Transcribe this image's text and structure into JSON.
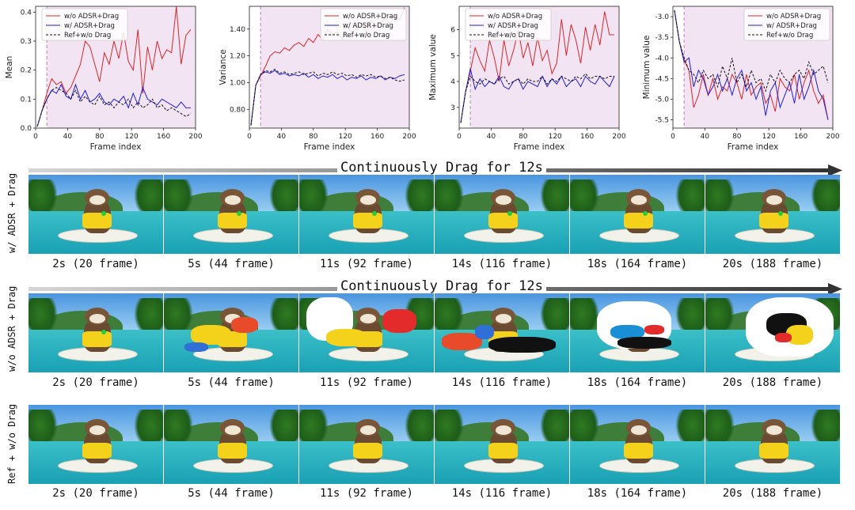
{
  "chart_data": [
    {
      "type": "line",
      "xlabel": "Frame index",
      "ylabel": "Mean",
      "xlim": [
        0,
        200
      ],
      "ylim": [
        0.0,
        0.42
      ],
      "xticks": [
        "0",
        "40",
        "80",
        "120",
        "160",
        "200"
      ],
      "yticks": [
        "0.0",
        "0.1",
        "0.2",
        "0.3",
        "0.4"
      ],
      "yticks_values": [
        0.0,
        0.1,
        0.2,
        0.3,
        0.4
      ],
      "marker_x": 14,
      "legend_position": "top-left",
      "legend": [
        "w/o ADSR+Drag",
        "w/ ADSR+Drag",
        "Ref+w/o Drag"
      ],
      "x": [
        2,
        8,
        14,
        20,
        26,
        32,
        38,
        44,
        50,
        56,
        62,
        68,
        74,
        80,
        86,
        92,
        98,
        104,
        110,
        116,
        122,
        128,
        134,
        140,
        146,
        152,
        158,
        164,
        170,
        176,
        182,
        188,
        194
      ],
      "series": [
        {
          "name": "w/o ADSR+Drag",
          "color": "#d62728",
          "style": "solid",
          "values": [
            0.005,
            0.06,
            0.12,
            0.17,
            0.15,
            0.16,
            0.12,
            0.14,
            0.18,
            0.22,
            0.3,
            0.28,
            0.22,
            0.16,
            0.26,
            0.22,
            0.3,
            0.24,
            0.33,
            0.23,
            0.2,
            0.34,
            0.12,
            0.28,
            0.2,
            0.3,
            0.24,
            0.27,
            0.26,
            0.42,
            0.22,
            0.32,
            0.34
          ]
        },
        {
          "name": "w/ ADSR+Drag",
          "color": "#1f1fd6",
          "style": "solid",
          "values": [
            0.005,
            0.06,
            0.1,
            0.13,
            0.12,
            0.15,
            0.11,
            0.1,
            0.15,
            0.1,
            0.13,
            0.09,
            0.1,
            0.12,
            0.09,
            0.08,
            0.1,
            0.09,
            0.11,
            0.07,
            0.12,
            0.08,
            0.14,
            0.1,
            0.09,
            0.08,
            0.1,
            0.09,
            0.08,
            0.07,
            0.09,
            0.07,
            0.07
          ]
        },
        {
          "name": "Ref+w/o Drag",
          "color": "#111111",
          "style": "dashed",
          "values": [
            0.005,
            0.06,
            0.1,
            0.13,
            0.14,
            0.13,
            0.12,
            0.1,
            0.13,
            0.09,
            0.11,
            0.09,
            0.08,
            0.11,
            0.08,
            0.09,
            0.07,
            0.09,
            0.08,
            0.1,
            0.07,
            0.09,
            0.07,
            0.08,
            0.1,
            0.07,
            0.08,
            0.06,
            0.07,
            0.06,
            0.05,
            0.04,
            0.05
          ]
        }
      ]
    },
    {
      "type": "line",
      "xlabel": "Frame index",
      "ylabel": "Variance",
      "xlim": [
        0,
        200
      ],
      "ylim": [
        0.66,
        1.57
      ],
      "xticks": [
        "0",
        "40",
        "80",
        "120",
        "160",
        "200"
      ],
      "yticks": [
        "0.80",
        "1.00",
        "1.20",
        "1.40"
      ],
      "yticks_values": [
        0.8,
        1.0,
        1.2,
        1.4
      ],
      "marker_x": 14,
      "legend_position": "top-right",
      "legend": [
        "w/o ADSR+Drag",
        "w/ ADSR+Drag",
        "Ref+w/o Drag"
      ],
      "x": [
        2,
        8,
        14,
        20,
        26,
        32,
        38,
        44,
        50,
        56,
        62,
        68,
        74,
        80,
        86,
        92,
        98,
        104,
        110,
        116,
        122,
        128,
        134,
        140,
        146,
        152,
        158,
        164,
        170,
        176,
        182,
        188,
        194
      ],
      "series": [
        {
          "name": "w/o ADSR+Drag",
          "color": "#d62728",
          "style": "solid",
          "values": [
            0.68,
            0.98,
            1.05,
            1.12,
            1.2,
            1.23,
            1.22,
            1.26,
            1.24,
            1.28,
            1.3,
            1.27,
            1.33,
            1.3,
            1.36,
            1.32,
            1.4,
            1.36,
            1.38,
            1.32,
            1.42,
            1.38,
            1.4,
            1.44,
            1.38,
            1.46,
            1.42,
            1.45,
            1.48,
            1.44,
            1.5,
            1.47,
            1.56
          ]
        },
        {
          "name": "w/ ADSR+Drag",
          "color": "#1f1fd6",
          "style": "solid",
          "values": [
            0.68,
            0.98,
            1.06,
            1.08,
            1.07,
            1.09,
            1.06,
            1.07,
            1.05,
            1.06,
            1.05,
            1.07,
            1.04,
            1.06,
            1.03,
            1.05,
            1.04,
            1.06,
            1.03,
            1.05,
            1.02,
            1.04,
            1.03,
            1.05,
            1.02,
            1.04,
            1.03,
            1.05,
            1.02,
            1.04,
            1.03,
            1.05,
            1.06
          ]
        },
        {
          "name": "Ref+w/o Drag",
          "color": "#111111",
          "style": "dashed",
          "values": [
            0.68,
            0.98,
            1.06,
            1.09,
            1.08,
            1.1,
            1.07,
            1.08,
            1.06,
            1.07,
            1.08,
            1.06,
            1.07,
            1.08,
            1.05,
            1.07,
            1.06,
            1.08,
            1.06,
            1.07,
            1.05,
            1.06,
            1.04,
            1.06,
            1.05,
            1.06,
            1.04,
            1.05,
            1.03,
            1.04,
            1.02,
            1.01,
            1.02
          ]
        }
      ]
    },
    {
      "type": "line",
      "xlabel": "Frame index",
      "ylabel": "Maximum value",
      "xlim": [
        0,
        200
      ],
      "ylim": [
        2.2,
        6.9
      ],
      "xticks": [
        "0",
        "40",
        "80",
        "120",
        "160",
        "200"
      ],
      "yticks": [
        "3",
        "4",
        "5",
        "6"
      ],
      "yticks_values": [
        3,
        4,
        5,
        6
      ],
      "marker_x": 14,
      "legend_position": "top-left",
      "legend": [
        "w/o ADSR+Drag",
        "w/ ADSR+Drag",
        "Ref+w/o Drag"
      ],
      "x": [
        2,
        8,
        14,
        20,
        26,
        32,
        38,
        44,
        50,
        56,
        62,
        68,
        74,
        80,
        86,
        92,
        98,
        104,
        110,
        116,
        122,
        128,
        134,
        140,
        146,
        152,
        158,
        164,
        170,
        176,
        182,
        188,
        194
      ],
      "series": [
        {
          "name": "w/o ADSR+Drag",
          "color": "#d62728",
          "style": "solid",
          "values": [
            2.4,
            3.6,
            4.4,
            5.3,
            4.8,
            4.4,
            5.6,
            4.9,
            4.0,
            5.6,
            4.6,
            5.2,
            6.0,
            4.9,
            5.5,
            4.6,
            5.7,
            4.8,
            5.2,
            4.3,
            4.7,
            6.4,
            5.0,
            6.2,
            5.6,
            4.7,
            6.1,
            5.2,
            6.2,
            5.4,
            6.7,
            5.8,
            5.8
          ]
        },
        {
          "name": "w/ ADSR+Drag",
          "color": "#1f1fd6",
          "style": "solid",
          "values": [
            2.4,
            3.6,
            4.5,
            3.7,
            4.1,
            3.8,
            4.0,
            3.9,
            4.2,
            3.8,
            3.7,
            4.0,
            4.1,
            3.7,
            4.0,
            3.9,
            3.8,
            4.2,
            3.8,
            4.1,
            3.9,
            4.2,
            3.8,
            4.0,
            4.1,
            3.8,
            4.2,
            4.0,
            3.9,
            4.2,
            4.0,
            3.8,
            4.2
          ]
        },
        {
          "name": "Ref+w/o Drag",
          "color": "#111111",
          "style": "dashed",
          "values": [
            2.4,
            3.6,
            4.2,
            4.0,
            3.9,
            4.1,
            4.0,
            3.9,
            4.1,
            4.2,
            3.9,
            4.0,
            4.1,
            3.9,
            4.1,
            4.0,
            4.0,
            4.2,
            3.9,
            4.1,
            4.0,
            4.2,
            4.1,
            4.0,
            4.2,
            4.1,
            4.3,
            4.1,
            4.2,
            4.2,
            4.1,
            4.2,
            4.2
          ]
        }
      ]
    },
    {
      "type": "line",
      "xlabel": "Frame index",
      "ylabel": "Minimum value",
      "xlim": [
        0,
        200
      ],
      "ylim": [
        -5.7,
        -2.75
      ],
      "xticks": [
        "0",
        "40",
        "80",
        "120",
        "160",
        "200"
      ],
      "yticks": [
        "-5.5",
        "-5.0",
        "-4.5",
        "-4.0",
        "-3.5",
        "-3.0"
      ],
      "yticks_values": [
        -5.5,
        -5.0,
        -4.5,
        -4.0,
        -3.5,
        -3.0
      ],
      "marker_x": 14,
      "legend_position": "top-right",
      "legend": [
        "w/o ADSR+Drag",
        "w/ ADSR+Drag",
        "Ref+w/o Drag"
      ],
      "x": [
        2,
        8,
        14,
        20,
        26,
        32,
        38,
        44,
        50,
        56,
        62,
        68,
        74,
        80,
        86,
        92,
        98,
        104,
        110,
        116,
        122,
        128,
        134,
        140,
        146,
        152,
        158,
        164,
        170,
        176,
        182,
        188,
        194
      ],
      "series": [
        {
          "name": "w/o ADSR+Drag",
          "color": "#d62728",
          "style": "solid",
          "values": [
            -2.85,
            -3.6,
            -4.05,
            -4.3,
            -5.2,
            -4.9,
            -4.4,
            -4.9,
            -4.5,
            -5.0,
            -4.7,
            -4.8,
            -4.4,
            -4.6,
            -5.0,
            -4.4,
            -4.9,
            -4.7,
            -4.6,
            -5.1,
            -4.9,
            -5.3,
            -4.5,
            -4.7,
            -4.8,
            -4.4,
            -5.0,
            -4.6,
            -4.3,
            -4.8,
            -5.1,
            -4.9,
            -5.5
          ]
        },
        {
          "name": "w/ ADSR+Drag",
          "color": "#1f1fd6",
          "style": "solid",
          "values": [
            -2.85,
            -3.6,
            -4.1,
            -4.0,
            -4.7,
            -4.3,
            -4.5,
            -4.9,
            -4.7,
            -4.4,
            -4.8,
            -4.5,
            -4.9,
            -4.5,
            -4.3,
            -4.8,
            -4.6,
            -5.0,
            -4.7,
            -5.4,
            -4.8,
            -4.6,
            -5.2,
            -4.9,
            -4.6,
            -5.1,
            -4.4,
            -5.0,
            -4.7,
            -4.3,
            -4.8,
            -5.0,
            -5.5
          ]
        },
        {
          "name": "Ref+w/o Drag",
          "color": "#111111",
          "style": "dashed",
          "values": [
            -2.85,
            -3.6,
            -4.0,
            -4.3,
            -4.4,
            -4.6,
            -4.3,
            -4.5,
            -4.4,
            -4.7,
            -4.2,
            -4.5,
            -4.0,
            -4.6,
            -4.4,
            -4.7,
            -4.3,
            -4.6,
            -4.5,
            -4.8,
            -4.4,
            -4.6,
            -4.3,
            -4.5,
            -4.6,
            -4.4,
            -4.3,
            -4.5,
            -4.1,
            -4.4,
            -4.3,
            -4.2,
            -4.6
          ]
        }
      ]
    }
  ],
  "arrows": [
    {
      "label": "Continuously Drag for 12s"
    },
    {
      "label": "Continuously Drag for 12s"
    }
  ],
  "rows": [
    {
      "label": "w/ ADSR + Drag",
      "frames": [
        "2s (20 frame)",
        "5s (44 frame)",
        "11s (92 frame)",
        "14s (116 frame)",
        "18s (164 frame)",
        "20s (188 frame)"
      ]
    },
    {
      "label": "w/o ADSR + Drag",
      "frames": [
        "2s (20 frame)",
        "5s (44 frame)",
        "11s (92 frame)",
        "14s (116 frame)",
        "18s (164 frame)",
        "20s (188 frame)"
      ]
    },
    {
      "label": "Ref + w/o Drag",
      "frames": [
        "2s (20 frame)",
        "5s (44 frame)",
        "11s (92 frame)",
        "14s (116 frame)",
        "18s (164 frame)",
        "20s (188 frame)"
      ]
    }
  ]
}
